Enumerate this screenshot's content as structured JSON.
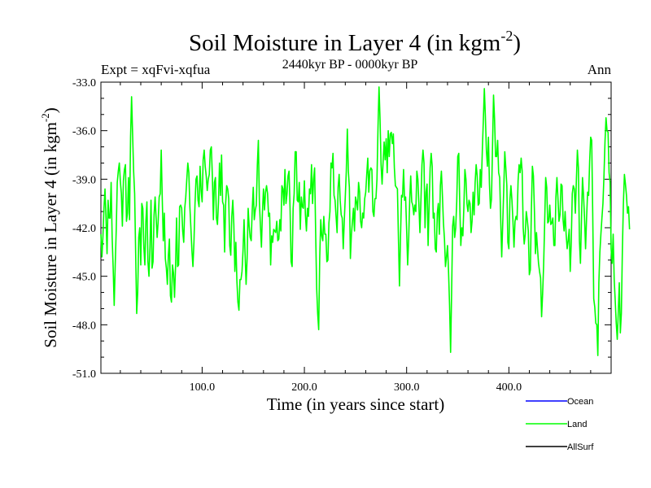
{
  "chart_data": {
    "type": "line",
    "title": "Soil Moisture in Layer 4 (in kgm",
    "title_superscript": "-2",
    "title_close": ")",
    "subtitle": "2440kyr BP - 0000kyr BP",
    "left_label": "Expt = xqFvi-xqfua",
    "right_label": "Ann",
    "xlabel": "Time (in years since start)",
    "ylabel": "Soil Moisture in Layer 4 (in kgm",
    "ylabel_superscript": "-2",
    "ylabel_close": ")",
    "xlim": [
      1,
      500
    ],
    "ylim": [
      -51.0,
      -33.0
    ],
    "x_ticks": [
      100,
      200,
      300,
      400
    ],
    "x_tick_labels": [
      "100.0",
      "200.0",
      "300.0",
      "400.0"
    ],
    "y_ticks": [
      -33,
      -36,
      -39,
      -42,
      -45,
      -48,
      -51
    ],
    "y_tick_labels": [
      "-33.0",
      "-36.0",
      "-39.0",
      "-42.0",
      "-45.0",
      "-48.0",
      "-51.0"
    ],
    "legend": [
      {
        "name": "Ocean",
        "color": "#0000ff"
      },
      {
        "name": "Land",
        "color": "#00ff00"
      },
      {
        "name": "AllSurf",
        "color": "#000000"
      }
    ],
    "series": [
      {
        "name": "Land",
        "color": "#00ff00",
        "x_start": 1,
        "x_step": 1,
        "values": [
          -42.4,
          -43.8,
          -42.5,
          -40.8,
          -39.6,
          -41.4,
          -43.6,
          -40.3,
          -41.4,
          -41.4,
          -39.2,
          -42.6,
          -44.5,
          -46.8,
          -44.3,
          -42.1,
          -39.2,
          -38.5,
          -38.0,
          -39.1,
          -39.9,
          -41.9,
          -39.1,
          -38.4,
          -38.1,
          -41.6,
          -41.1,
          -38.9,
          -41.5,
          -36.4,
          -33.9,
          -36.2,
          -38.5,
          -39.9,
          -43.6,
          -47.3,
          -46.0,
          -42.6,
          -42.0,
          -44.3,
          -40.5,
          -40.8,
          -43.2,
          -44.3,
          -41.6,
          -40.4,
          -44.1,
          -45.0,
          -43.2,
          -40.3,
          -44.5,
          -44.1,
          -41.2,
          -40.1,
          -41.4,
          -42.6,
          -41.6,
          -40.1,
          -39.9,
          -37.2,
          -40.2,
          -42.8,
          -41.1,
          -43.9,
          -44.5,
          -45.5,
          -43.7,
          -42.7,
          -46.2,
          -46.6,
          -44.3,
          -44.8,
          -46.3,
          -44.4,
          -41.4,
          -44.4,
          -44.3,
          -40.7,
          -40.6,
          -40.8,
          -42.2,
          -42.9,
          -40.8,
          -40.1,
          -39.0,
          -38.0,
          -38.6,
          -40.7,
          -42.0,
          -43.4,
          -44.4,
          -42.9,
          -40.6,
          -39.0,
          -38.8,
          -40.3,
          -40.7,
          -38.2,
          -39.7,
          -40.4,
          -37.8,
          -37.2,
          -38.2,
          -38.8,
          -39.7,
          -39.0,
          -38.7,
          -37.2,
          -37.0,
          -38.8,
          -41.5,
          -39.2,
          -38.9,
          -41.4,
          -41.8,
          -40.4,
          -38.0,
          -40.0,
          -37.5,
          -40.4,
          -40.6,
          -43.5,
          -40.5,
          -39.4,
          -39.6,
          -40.2,
          -43.1,
          -43.7,
          -41.3,
          -40.3,
          -41.8,
          -44.7,
          -42.9,
          -45.3,
          -46.6,
          -47.1,
          -45.2,
          -45.2,
          -44.7,
          -43.4,
          -41.5,
          -43.6,
          -45.5,
          -43.9,
          -40.8,
          -41.9,
          -42.6,
          -42.8,
          -40.9,
          -39.5,
          -41.5,
          -40.9,
          -40.6,
          -38.1,
          -36.6,
          -40.4,
          -41.9,
          -43.2,
          -41.0,
          -39.6,
          -40.9,
          -39.8,
          -39.4,
          -39.9,
          -41.3,
          -41.1,
          -44.3,
          -42.5,
          -42.9,
          -42.1,
          -42.2,
          -42.3,
          -41.6,
          -42.8,
          -42.7,
          -41.5,
          -42.2,
          -39.4,
          -39.6,
          -40.6,
          -38.4,
          -40.5,
          -39.9,
          -38.8,
          -38.5,
          -40.8,
          -44.1,
          -44.4,
          -40.8,
          -39.9,
          -37.3,
          -37.3,
          -40.3,
          -40.4,
          -39.2,
          -42.1,
          -40.1,
          -40.7,
          -40.8,
          -39.1,
          -41.2,
          -42.2,
          -40.8,
          -41.3,
          -39.6,
          -39.9,
          -38.1,
          -40.5,
          -39.0,
          -38.3,
          -42.2,
          -45.7,
          -47.3,
          -48.3,
          -43.9,
          -41.5,
          -42.5,
          -42.8,
          -41.3,
          -42.4,
          -42.4,
          -44.1,
          -44.0,
          -41.7,
          -41.0,
          -38.0,
          -38.3,
          -37.4,
          -40.0,
          -40.3,
          -41.3,
          -42.3,
          -39.5,
          -38.7,
          -40.3,
          -41.2,
          -41.4,
          -43.3,
          -41.6,
          -40.1,
          -38.5,
          -35.9,
          -38.5,
          -39.5,
          -43.9,
          -42.4,
          -41.6,
          -40.8,
          -42.2,
          -40.1,
          -40.4,
          -40.9,
          -39.2,
          -39.8,
          -41.6,
          -42.0,
          -41.1,
          -41.4,
          -40.2,
          -39.8,
          -38.7,
          -37.7,
          -39.8,
          -38.5,
          -38.3,
          -38.4,
          -41.0,
          -41.3,
          -40.2,
          -40.2,
          -39.0,
          -35.8,
          -33.3,
          -35.3,
          -38.1,
          -39.3,
          -37.9,
          -36.7,
          -37.8,
          -36.5,
          -38.6,
          -36.0,
          -37.6,
          -36.2,
          -36.1,
          -36.8,
          -36.2,
          -38.3,
          -39.4,
          -39.5,
          -39.6,
          -42.7,
          -45.6,
          -42.6,
          -40.0,
          -40.1,
          -38.4,
          -40.3,
          -40.1,
          -42.1,
          -44.3,
          -42.7,
          -40.3,
          -38.8,
          -40.4,
          -40.6,
          -41.2,
          -40.6,
          -41.0,
          -38.5,
          -39.0,
          -40.6,
          -42.3,
          -40.3,
          -38.1,
          -37.2,
          -38.0,
          -42.0,
          -39.8,
          -39.3,
          -43.1,
          -40.6,
          -38.3,
          -37.4,
          -38.2,
          -41.4,
          -41.1,
          -43.3,
          -43.5,
          -41.1,
          -40.5,
          -42.4,
          -39.4,
          -38.5,
          -40.0,
          -41.7,
          -42.7,
          -44.4,
          -43.8,
          -43.1,
          -44.7,
          -46.8,
          -49.7,
          -46.0,
          -41.9,
          -41.3,
          -42.6,
          -42.0,
          -40.4,
          -37.6,
          -37.4,
          -40.7,
          -43.1,
          -42.0,
          -42.5,
          -40.7,
          -38.4,
          -39.0,
          -40.5,
          -41.0,
          -40.3,
          -40.5,
          -42.3,
          -41.6,
          -39.8,
          -41.2,
          -39.2,
          -38.1,
          -38.8,
          -40.6,
          -40.5,
          -38.4,
          -39.5,
          -37.3,
          -35.4,
          -33.4,
          -35.1,
          -37.2,
          -38.2,
          -36.4,
          -39.3,
          -40.8,
          -40.2,
          -37.0,
          -33.8,
          -35.3,
          -37.6,
          -37.6,
          -36.6,
          -38.6,
          -38.9,
          -41.5,
          -43.8,
          -41.7,
          -39.6,
          -37.3,
          -38.3,
          -39.4,
          -42.9,
          -43.3,
          -40.3,
          -39.4,
          -40.3,
          -41.6,
          -43.2,
          -41.6,
          -41.3,
          -41.5,
          -39.1,
          -38.1,
          -38.6,
          -37.7,
          -38.5,
          -42.0,
          -43.0,
          -42.4,
          -41.0,
          -41.5,
          -42.2,
          -44.9,
          -44.6,
          -40.9,
          -38.2,
          -38.8,
          -41.0,
          -43.6,
          -42.3,
          -43.3,
          -44.2,
          -44.7,
          -45.1,
          -47.5,
          -46.1,
          -44.3,
          -41.7,
          -38.9,
          -39.5,
          -41.7,
          -41.6,
          -40.6,
          -41.8,
          -41.7,
          -41.4,
          -43.1,
          -43.1,
          -40.1,
          -38.9,
          -40.2,
          -41.6,
          -41.2,
          -39.3,
          -39.4,
          -41.5,
          -42.2,
          -41.0,
          -42.4,
          -43.3,
          -42.8,
          -42.1,
          -44.7,
          -42.9,
          -39.9,
          -39.4,
          -39.6,
          -41.1,
          -39.1,
          -37.2,
          -38.3,
          -42.8,
          -44.2,
          -41.5,
          -38.9,
          -40.0,
          -41.4,
          -43.3,
          -41.4,
          -39.8,
          -40.0,
          -37.9,
          -36.4,
          -36.6,
          -41.1,
          -46.4,
          -46.9,
          -47.9,
          -48.0,
          -49.9,
          -45.4,
          -43.5,
          -42.4,
          -41.4,
          -40.5,
          -38.8,
          -36.7,
          -35.2,
          -36.0,
          -36.1,
          -38.6,
          -39.2,
          -43.3,
          -44.2,
          -42.4,
          -45.2,
          -46.5,
          -47.9,
          -48.9,
          -47.2,
          -45.4,
          -48.5,
          -47.3,
          -43.4,
          -40.5,
          -38.7,
          -39.3,
          -40.0,
          -41.1,
          -40.7,
          -42.1
        ]
      }
    ]
  }
}
